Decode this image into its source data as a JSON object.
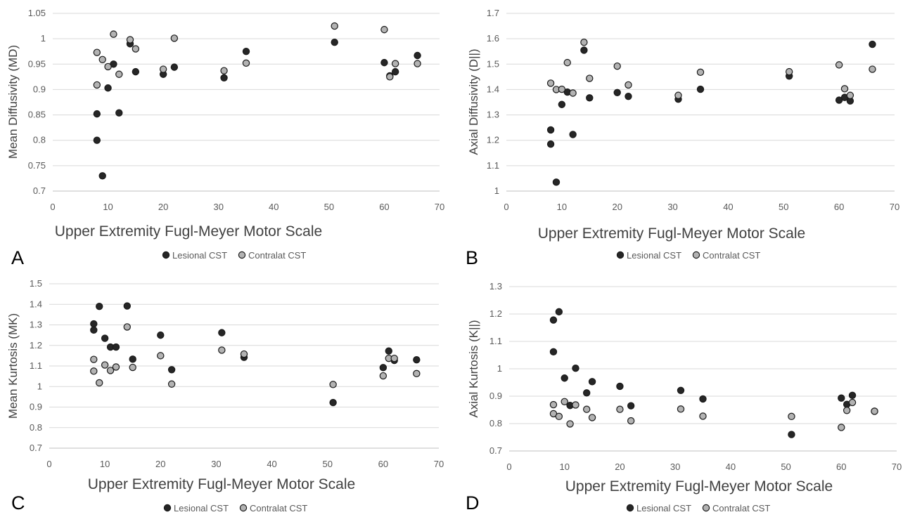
{
  "colors": {
    "lesional": "#262626",
    "contralat": "#b3b3b3",
    "marker_stroke": "#1a1a1a",
    "grid": "#d9d9d9"
  },
  "chart_data": [
    {
      "panel": "A",
      "type": "scatter",
      "ylabel": "Mean Diffusivity (MD)",
      "xlabel": "Upper Extremity  Fugl-Meyer Motor Scale",
      "xlim": [
        0,
        70
      ],
      "xticks": [
        0,
        10,
        20,
        30,
        40,
        50,
        60,
        70
      ],
      "ylim": [
        0.7,
        1.05
      ],
      "yticks": [
        "0.7",
        "0.75",
        "0.8",
        "0.85",
        "0.9",
        "0.95",
        "1",
        "1.05"
      ],
      "grid": true,
      "legend_position": "bottom",
      "series": [
        {
          "name": "Lesional CST",
          "key": "lesional",
          "points": [
            [
              8,
              0.852
            ],
            [
              8,
              0.8
            ],
            [
              9,
              0.73
            ],
            [
              10,
              0.903
            ],
            [
              11,
              0.95
            ],
            [
              12,
              0.854
            ],
            [
              14,
              0.99
            ],
            [
              15,
              0.935
            ],
            [
              20,
              0.93
            ],
            [
              22,
              0.944
            ],
            [
              31,
              0.923
            ],
            [
              35,
              0.975
            ],
            [
              51,
              0.993
            ],
            [
              60,
              0.953
            ],
            [
              61,
              0.927
            ],
            [
              62,
              0.935
            ],
            [
              66,
              0.967
            ]
          ]
        },
        {
          "name": "Contralat CST",
          "key": "contralat",
          "points": [
            [
              8,
              0.973
            ],
            [
              8,
              0.909
            ],
            [
              9,
              0.959
            ],
            [
              10,
              0.945
            ],
            [
              11,
              1.009
            ],
            [
              12,
              0.93
            ],
            [
              14,
              0.998
            ],
            [
              15,
              0.98
            ],
            [
              20,
              0.94
            ],
            [
              22,
              1.001
            ],
            [
              31,
              0.937
            ],
            [
              35,
              0.952
            ],
            [
              51,
              1.025
            ],
            [
              60,
              1.018
            ],
            [
              61,
              0.925
            ],
            [
              62,
              0.951
            ],
            [
              66,
              0.951
            ]
          ]
        }
      ]
    },
    {
      "panel": "B",
      "type": "scatter",
      "ylabel": "Axial Diffusivity (D||)",
      "xlabel": "Upper Extremity  Fugl-Meyer Motor Scale",
      "xlim": [
        0,
        70
      ],
      "xticks": [
        0,
        10,
        20,
        30,
        40,
        50,
        60,
        70
      ],
      "ylim": [
        1,
        1.7
      ],
      "yticks": [
        "1",
        "1.1",
        "1.2",
        "1.3",
        "1.4",
        "1.5",
        "1.6",
        "1.7"
      ],
      "grid": true,
      "legend_position": "bottom",
      "series": [
        {
          "name": "Lesional CST",
          "key": "lesional",
          "points": [
            [
              8,
              1.241
            ],
            [
              8,
              1.185
            ],
            [
              9,
              1.035
            ],
            [
              10,
              1.341
            ],
            [
              11,
              1.39
            ],
            [
              12,
              1.223
            ],
            [
              14,
              1.555
            ],
            [
              15,
              1.367
            ],
            [
              20,
              1.388
            ],
            [
              22,
              1.373
            ],
            [
              31,
              1.362
            ],
            [
              35,
              1.401
            ],
            [
              51,
              1.453
            ],
            [
              60,
              1.358
            ],
            [
              61,
              1.369
            ],
            [
              62,
              1.355
            ],
            [
              66,
              1.578
            ]
          ]
        },
        {
          "name": "Contralat CST",
          "key": "contralat",
          "points": [
            [
              8,
              1.425
            ],
            [
              9,
              1.4
            ],
            [
              10,
              1.401
            ],
            [
              11,
              1.506
            ],
            [
              12,
              1.386
            ],
            [
              14,
              1.586
            ],
            [
              15,
              1.444
            ],
            [
              20,
              1.492
            ],
            [
              22,
              1.418
            ],
            [
              31,
              1.377
            ],
            [
              35,
              1.468
            ],
            [
              51,
              1.47
            ],
            [
              60,
              1.497
            ],
            [
              61,
              1.403
            ],
            [
              62,
              1.377
            ],
            [
              66,
              1.48
            ]
          ]
        }
      ]
    },
    {
      "panel": "C",
      "type": "scatter",
      "ylabel": "Mean Kurtosis (MK)",
      "xlabel": "Upper Extremity  Fugl-Meyer Motor Scale",
      "xlim": [
        0,
        70
      ],
      "xticks": [
        0,
        10,
        20,
        30,
        40,
        50,
        60,
        70
      ],
      "ylim": [
        0.7,
        1.5
      ],
      "yticks": [
        "0.7",
        "0.8",
        "0.9",
        "1",
        "1.1",
        "1.2",
        "1.3",
        "1.4",
        "1.5"
      ],
      "grid": true,
      "legend_position": "bottom",
      "series": [
        {
          "name": "Lesional CST",
          "key": "lesional",
          "points": [
            [
              8,
              1.305
            ],
            [
              8,
              1.275
            ],
            [
              9,
              1.39
            ],
            [
              10,
              1.235
            ],
            [
              11,
              1.192
            ],
            [
              12,
              1.192
            ],
            [
              14,
              1.392
            ],
            [
              15,
              1.133
            ],
            [
              20,
              1.25
            ],
            [
              22,
              1.082
            ],
            [
              31,
              1.262
            ],
            [
              35,
              1.142
            ],
            [
              51,
              0.922
            ],
            [
              60,
              1.092
            ],
            [
              61,
              1.173
            ],
            [
              62,
              1.127
            ],
            [
              66,
              1.13
            ]
          ]
        },
        {
          "name": "Contralat CST",
          "key": "contralat",
          "points": [
            [
              8,
              1.132
            ],
            [
              8,
              1.075
            ],
            [
              9,
              1.018
            ],
            [
              10,
              1.105
            ],
            [
              11,
              1.078
            ],
            [
              12,
              1.095
            ],
            [
              14,
              1.29
            ],
            [
              15,
              1.093
            ],
            [
              20,
              1.15
            ],
            [
              22,
              1.012
            ],
            [
              31,
              1.177
            ],
            [
              35,
              1.158
            ],
            [
              51,
              1.01
            ],
            [
              60,
              1.052
            ],
            [
              61,
              1.137
            ],
            [
              62,
              1.137
            ],
            [
              66,
              1.063
            ]
          ]
        }
      ]
    },
    {
      "panel": "D",
      "type": "scatter",
      "ylabel": "Axial Kurtosis (K||)",
      "xlabel": "Upper Extremity  Fugl-Meyer Motor Scale",
      "xlim": [
        0,
        70
      ],
      "xticks": [
        0,
        10,
        20,
        30,
        40,
        50,
        60,
        70
      ],
      "ylim": [
        0.7,
        1.3
      ],
      "yticks": [
        "0.7",
        "0.8",
        "0.9",
        "1",
        "1.1",
        "1.2",
        "1.3"
      ],
      "grid": true,
      "legend_position": "bottom",
      "series": [
        {
          "name": "Lesional CST",
          "key": "lesional",
          "points": [
            [
              8,
              1.178
            ],
            [
              8,
              1.062
            ],
            [
              9,
              1.208
            ],
            [
              10,
              0.966
            ],
            [
              11,
              0.866
            ],
            [
              12,
              1.002
            ],
            [
              14,
              0.912
            ],
            [
              15,
              0.953
            ],
            [
              20,
              0.936
            ],
            [
              22,
              0.865
            ],
            [
              31,
              0.921
            ],
            [
              35,
              0.89
            ],
            [
              51,
              0.76
            ],
            [
              60,
              0.893
            ],
            [
              61,
              0.87
            ],
            [
              62,
              0.903
            ],
            [
              66,
              0.845
            ]
          ]
        },
        {
          "name": "Contralat CST",
          "key": "contralat",
          "points": [
            [
              8,
              0.869
            ],
            [
              8,
              0.836
            ],
            [
              9,
              0.826
            ],
            [
              10,
              0.88
            ],
            [
              11,
              0.799
            ],
            [
              12,
              0.868
            ],
            [
              14,
              0.852
            ],
            [
              15,
              0.822
            ],
            [
              20,
              0.852
            ],
            [
              22,
              0.81
            ],
            [
              31,
              0.853
            ],
            [
              35,
              0.827
            ],
            [
              51,
              0.826
            ],
            [
              60,
              0.786
            ],
            [
              61,
              0.848
            ],
            [
              62,
              0.877
            ],
            [
              66,
              0.845
            ]
          ]
        }
      ]
    }
  ]
}
